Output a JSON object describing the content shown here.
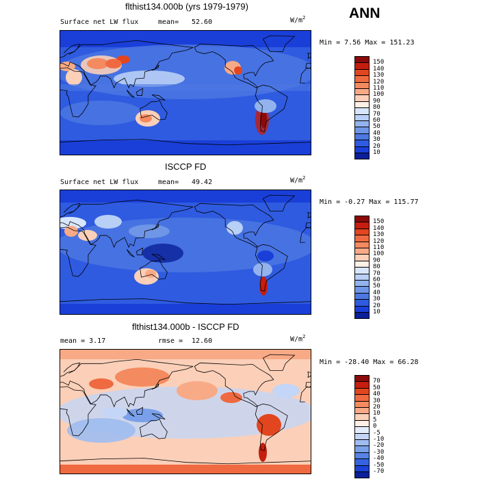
{
  "season": "ANN",
  "panels": [
    {
      "title": "flthist134.000b (yrs 1979-1979)",
      "left_text": "Surface net LW flux",
      "mean_label": "mean=",
      "mean_value": "52.60",
      "units_base": "W/m",
      "units_exp": "2",
      "minmax": "Min =   7.56 Max = 151.23",
      "colorbar": {
        "labels": [
          "150",
          "140",
          "130",
          "120",
          "110",
          "100",
          "90",
          "80",
          "70",
          "60",
          "50",
          "40",
          "30",
          "20",
          "10"
        ],
        "colors": [
          "#8b0b0b",
          "#c51d0f",
          "#e2461f",
          "#ef6a40",
          "#f48a5f",
          "#f8aa86",
          "#fbcfb8",
          "#fff0e6",
          "#d7e6fb",
          "#b8cff6",
          "#93b3ee",
          "#6f96e6",
          "#4d78e2",
          "#2f5be0",
          "#1a3fd8",
          "#0a1f99"
        ]
      },
      "map_style": "model"
    },
    {
      "title": "ISCCP FD",
      "left_text": "Surface net LW flux",
      "mean_label": "mean=",
      "mean_value": "49.42",
      "units_base": "W/m",
      "units_exp": "2",
      "minmax": "Min =  -0.27 Max = 115.77",
      "colorbar": {
        "labels": [
          "150",
          "140",
          "130",
          "120",
          "110",
          "100",
          "90",
          "80",
          "70",
          "60",
          "50",
          "40",
          "30",
          "20",
          "10"
        ],
        "colors": [
          "#8b0b0b",
          "#c51d0f",
          "#e2461f",
          "#ef6a40",
          "#f48a5f",
          "#f8aa86",
          "#fbcfb8",
          "#fff0e6",
          "#d7e6fb",
          "#b8cff6",
          "#93b3ee",
          "#6f96e6",
          "#4d78e2",
          "#2f5be0",
          "#1a3fd8",
          "#0a1f99"
        ]
      },
      "map_style": "obs"
    },
    {
      "title": "flthist134.000b - ISCCP FD",
      "left_text": "mean =    3.17",
      "mean_label": "rmse =",
      "mean_value": "12.60",
      "units_base": "W/m",
      "units_exp": "2",
      "minmax": "Min = -28.40 Max =  66.28",
      "colorbar": {
        "labels": [
          "70",
          "50",
          "40",
          "30",
          "20",
          "10",
          "5",
          "0",
          "-5",
          "-10",
          "-20",
          "-30",
          "-40",
          "-50",
          "-70"
        ],
        "colors": [
          "#8b0b0b",
          "#c51d0f",
          "#e2461f",
          "#ef6a40",
          "#f48a5f",
          "#f8aa86",
          "#fbcfb8",
          "#fff0e6",
          "#e3ecfb",
          "#c3d6f7",
          "#9fbcf1",
          "#7aa0ea",
          "#5683e4",
          "#3563e0",
          "#1c43d6",
          "#0a1f99"
        ]
      },
      "map_style": "diff"
    }
  ]
}
